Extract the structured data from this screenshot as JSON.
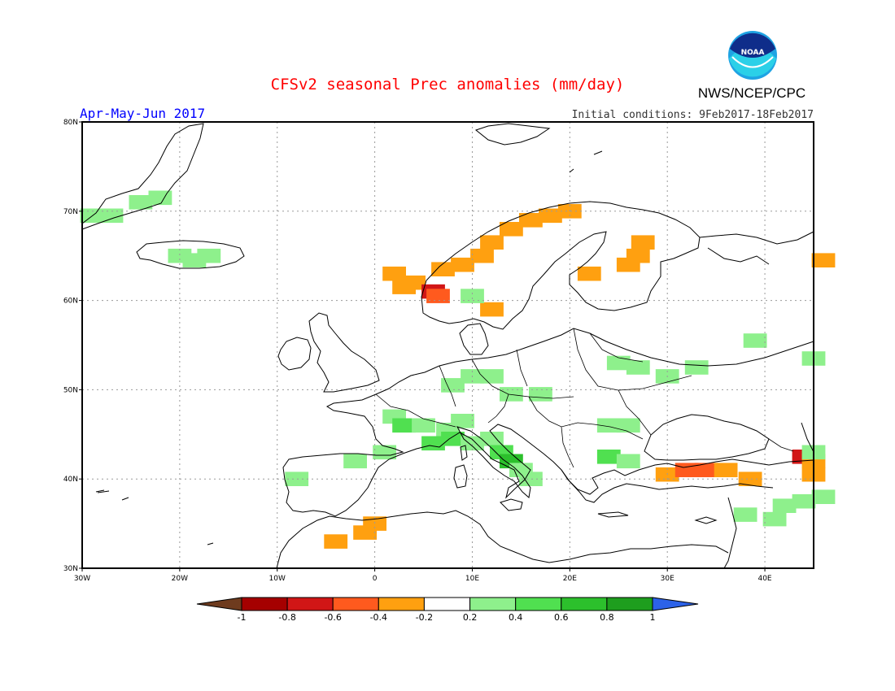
{
  "title": "CFSv2 seasonal Prec anomalies (mm/day)",
  "season": "Apr-May-Jun 2017",
  "agency": "NWS/NCEP/CPC",
  "logo_text": "NOAA",
  "initial_conditions": "Initial conditions: 9Feb2017-18Feb2017",
  "colors": {
    "title": "#ff0000",
    "season": "#0000ff",
    "land_outline": "#000000",
    "grid": "#9a9a9a"
  },
  "map": {
    "lon_range": [
      -30,
      45
    ],
    "lat_range": [
      30,
      80
    ],
    "lon_ticks": [
      {
        "value": -30,
        "label": "30W"
      },
      {
        "value": -20,
        "label": "20W"
      },
      {
        "value": -10,
        "label": "10W"
      },
      {
        "value": 0,
        "label": "0"
      },
      {
        "value": 10,
        "label": "10E"
      },
      {
        "value": 20,
        "label": "20E"
      },
      {
        "value": 30,
        "label": "30E"
      },
      {
        "value": 40,
        "label": "40E"
      }
    ],
    "lat_ticks": [
      {
        "value": 30,
        "label": "30N"
      },
      {
        "value": 40,
        "label": "40N"
      },
      {
        "value": 50,
        "label": "50N"
      },
      {
        "value": 60,
        "label": "60N"
      },
      {
        "value": 70,
        "label": "70N"
      },
      {
        "value": 80,
        "label": "80N"
      }
    ],
    "grid": "dotted",
    "anomaly_cells_lon_lat_value": [
      [
        -29,
        69.5,
        0.3
      ],
      [
        -27,
        69.5,
        0.3
      ],
      [
        -24,
        71,
        0.3
      ],
      [
        -22,
        71.5,
        0.3
      ],
      [
        -20,
        65,
        0.3
      ],
      [
        -18.5,
        64.5,
        0.3
      ],
      [
        -17,
        65,
        0.3
      ],
      [
        2,
        63,
        -0.3
      ],
      [
        3,
        61.5,
        -0.3
      ],
      [
        4,
        62,
        -0.3
      ],
      [
        6,
        61,
        -0.7
      ],
      [
        6.5,
        60.5,
        -0.5
      ],
      [
        7,
        63.5,
        -0.3
      ],
      [
        9,
        64,
        -0.3
      ],
      [
        11,
        65,
        -0.3
      ],
      [
        12,
        66.5,
        -0.3
      ],
      [
        14,
        68,
        -0.3
      ],
      [
        16,
        69,
        -0.3
      ],
      [
        18,
        69.5,
        -0.3
      ],
      [
        20,
        70,
        -0.3
      ],
      [
        12,
        59,
        -0.3
      ],
      [
        10,
        60.5,
        0.3
      ],
      [
        22,
        63,
        -0.3
      ],
      [
        27,
        65,
        -0.3
      ],
      [
        27.5,
        66.5,
        -0.3
      ],
      [
        26,
        64,
        -0.3
      ],
      [
        46,
        64.5,
        -0.3
      ],
      [
        39,
        55.5,
        0.3
      ],
      [
        45,
        53.5,
        0.3
      ],
      [
        25,
        53,
        0.3
      ],
      [
        27,
        52.5,
        0.3
      ],
      [
        30,
        51.5,
        0.3
      ],
      [
        33,
        52.5,
        0.3
      ],
      [
        10,
        51.5,
        0.3
      ],
      [
        12,
        51.5,
        0.3
      ],
      [
        8,
        50.5,
        0.3
      ],
      [
        14,
        49.5,
        0.3
      ],
      [
        17,
        49.5,
        0.3
      ],
      [
        2,
        47,
        0.3
      ],
      [
        3,
        46,
        0.5
      ],
      [
        5,
        46,
        0.3
      ],
      [
        7.5,
        45.5,
        0.3
      ],
      [
        9,
        46.5,
        0.3
      ],
      [
        6,
        44,
        0.5
      ],
      [
        8,
        44.5,
        0.5
      ],
      [
        10,
        44,
        0.3
      ],
      [
        12,
        44.5,
        0.3
      ],
      [
        13,
        43,
        0.5
      ],
      [
        14,
        42,
        0.7
      ],
      [
        15,
        41,
        0.3
      ],
      [
        1,
        43,
        0.3
      ],
      [
        -2,
        42,
        0.3
      ],
      [
        -8,
        40,
        0.3
      ],
      [
        16,
        40,
        0.3
      ],
      [
        24,
        46,
        0.3
      ],
      [
        26,
        46,
        0.3
      ],
      [
        24,
        42.5,
        0.5
      ],
      [
        26,
        42,
        0.3
      ],
      [
        30,
        40.5,
        -0.3
      ],
      [
        32,
        41,
        -0.5
      ],
      [
        34,
        41,
        -0.5
      ],
      [
        36,
        41,
        -0.3
      ],
      [
        38.5,
        40,
        -0.3
      ],
      [
        44,
        42.5,
        -0.7
      ],
      [
        45,
        42,
        -0.3
      ],
      [
        45,
        40.5,
        -0.3
      ],
      [
        45,
        43,
        0.3
      ],
      [
        42,
        37,
        0.3
      ],
      [
        44,
        37.5,
        0.3
      ],
      [
        46,
        38,
        0.3
      ],
      [
        38,
        36,
        0.3
      ],
      [
        41,
        35.5,
        0.3
      ],
      [
        -4,
        33,
        -0.3
      ],
      [
        -1,
        34,
        -0.3
      ],
      [
        0,
        35,
        -0.3
      ]
    ]
  },
  "colorbar": {
    "labels": [
      "-1",
      "-0.8",
      "-0.6",
      "-0.4",
      "-0.2",
      "0.2",
      "0.4",
      "0.6",
      "0.8",
      "1"
    ],
    "colors": [
      "#6e3b1e",
      "#a50000",
      "#d11616",
      "#ff5a1e",
      "#ffa010",
      "#ffffff",
      "#8ef08c",
      "#50e050",
      "#2cc02c",
      "#1e9e1e",
      "#2c62e8"
    ]
  }
}
